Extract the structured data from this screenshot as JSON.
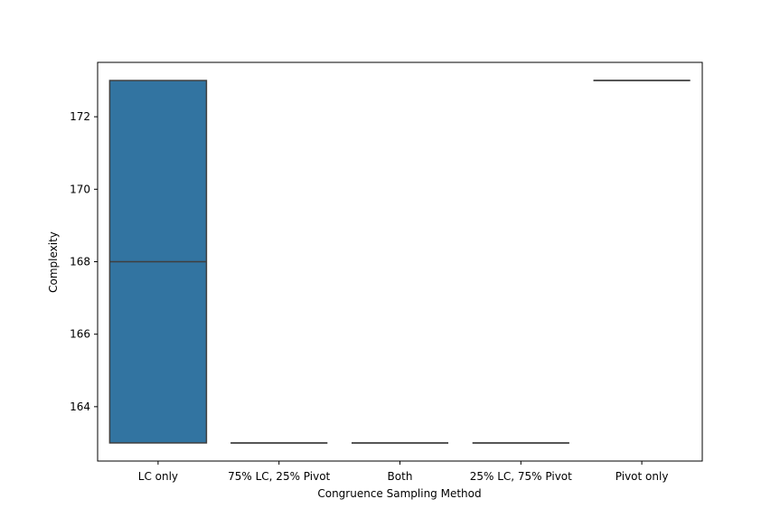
{
  "chart_data": {
    "type": "box",
    "title": "",
    "xlabel": "Congruence Sampling Method",
    "ylabel": "Complexity",
    "categories": [
      "LC only",
      "75% LC, 25% Pivot",
      "Both",
      "25% LC, 75% Pivot",
      "Pivot only"
    ],
    "series": [
      {
        "boxes": [
          {
            "category": "LC only",
            "min": 163,
            "q1": 163,
            "median": 168,
            "q3": 173,
            "max": 173
          },
          {
            "category": "75% LC, 25% Pivot",
            "min": 163,
            "q1": 163,
            "median": 163,
            "q3": 163,
            "max": 163
          },
          {
            "category": "Both",
            "min": 163,
            "q1": 163,
            "median": 163,
            "q3": 163,
            "max": 163
          },
          {
            "category": "25% LC, 75% Pivot",
            "min": 163,
            "q1": 163,
            "median": 163,
            "q3": 163,
            "max": 163
          },
          {
            "category": "Pivot only",
            "min": 173,
            "q1": 173,
            "median": 173,
            "q3": 173,
            "max": 173
          }
        ]
      }
    ],
    "ylim": [
      162.5,
      173.5
    ],
    "yticks": [
      164,
      166,
      168,
      170,
      172
    ],
    "grid": false,
    "box_color": "#3274a1",
    "line_color": "#3f3f3f"
  }
}
